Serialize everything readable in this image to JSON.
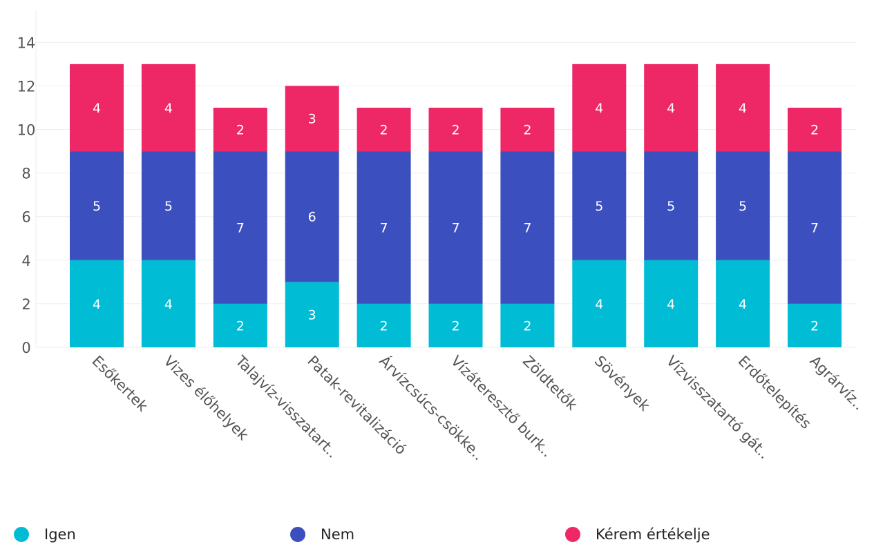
{
  "chart_data": {
    "type": "bar",
    "stacked": true,
    "categories": [
      "Esőkertek",
      "Vizes élőhelyek",
      "Talajvíz-visszatart..",
      "Patak-revitalizáció",
      "Árvízcsúcs-csökke..",
      "Vízáteresztő burk..",
      "Zöldtetők",
      "Sövények",
      "Vízvisszatartó gát..",
      "Erdőtelepítés",
      "Agrárvíz.."
    ],
    "series": [
      {
        "name": "Igen",
        "color": "#00bcd4",
        "values": [
          4,
          4,
          2,
          3,
          2,
          2,
          2,
          4,
          4,
          4,
          2
        ]
      },
      {
        "name": "Nem",
        "color": "#3b4fbe",
        "values": [
          5,
          5,
          7,
          6,
          7,
          7,
          7,
          5,
          5,
          5,
          7
        ]
      },
      {
        "name": "Kérem értékelje",
        "color": "#ee2866",
        "values": [
          4,
          4,
          2,
          3,
          2,
          2,
          2,
          4,
          4,
          4,
          2
        ]
      }
    ],
    "yticks": [
      0,
      2,
      4,
      6,
      8,
      10,
      12,
      14
    ],
    "ylim": [
      0,
      15.5
    ],
    "grid": true,
    "legend_position": "bottom"
  }
}
